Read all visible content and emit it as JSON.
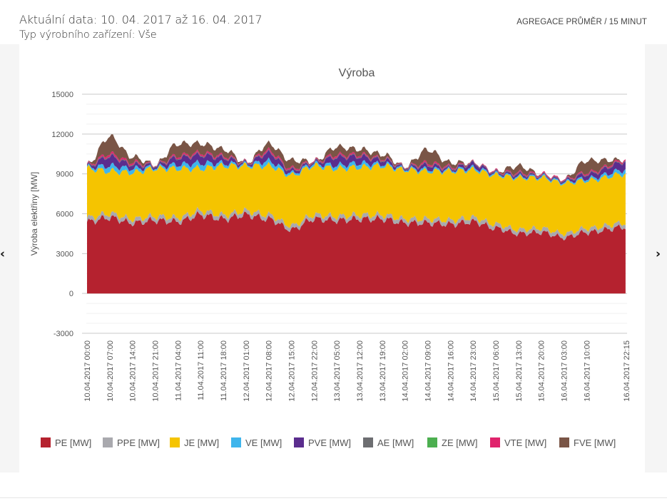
{
  "header": {
    "date_range": "Aktuální data: 10. 04. 2017 až 16. 04. 2017",
    "device_type": "Typ výrobního zařízení: Vše",
    "aggregation": "AGREGACE PRŮMĚR / 15 MINUT"
  },
  "navigation": {
    "prev_icon": "chevron-left-icon",
    "next_icon": "chevron-right-icon",
    "prev_glyph": "‹",
    "next_glyph": "›"
  },
  "chart_data": {
    "type": "area",
    "stacked": true,
    "title": "Výroba",
    "ylabel": "Výroba elektřiny [MW]",
    "xlabel": "",
    "ylim": [
      -3000,
      15000
    ],
    "yticks": [
      15000,
      12000,
      9000,
      6000,
      3000,
      0,
      -3000
    ],
    "grid": true,
    "legend_position": "bottom",
    "x": [
      "10.04.2017 00:00",
      "10.04.2017 07:00",
      "10.04.2017 14:00",
      "10.04.2017 21:00",
      "11.04.2017 04:00",
      "11.04.2017 11:00",
      "11.04.2017 18:00",
      "12.04.2017 01:00",
      "12.04.2017 08:00",
      "12.04.2017 15:00",
      "12.04.2017 22:00",
      "13.04.2017 05:00",
      "13.04.2017 12:00",
      "13.04.2017 19:00",
      "14.04.2017 02:00",
      "14.04.2017 09:00",
      "14.04.2017 16:00",
      "14.04.2017 23:00",
      "15.04.2017 06:00",
      "15.04.2017 13:00",
      "15.04.2017 20:00",
      "16.04.2017 03:00",
      "16.04.2017 10:00",
      "16.04.2017 22:15"
    ],
    "x_hours": [
      0,
      7,
      14,
      21,
      28,
      35,
      42,
      49,
      56,
      63,
      70,
      77,
      84,
      91,
      98,
      105,
      112,
      119,
      126,
      133,
      140,
      147,
      154,
      166.25
    ],
    "series": [
      {
        "name": "PE [MW]",
        "color": "#b5222f",
        "values": [
          5400,
          5700,
          5300,
          5500,
          5400,
          5900,
          5600,
          5900,
          5600,
          4800,
          5600,
          5500,
          5600,
          5600,
          5300,
          5300,
          5200,
          5400,
          4900,
          4500,
          4600,
          4200,
          4600,
          5000
        ]
      },
      {
        "name": "PPE [MW]",
        "color": "#a9a9ae",
        "values": [
          300,
          300,
          300,
          300,
          300,
          300,
          300,
          300,
          300,
          300,
          300,
          300,
          300,
          300,
          300,
          300,
          300,
          300,
          300,
          300,
          300,
          300,
          300,
          300
        ]
      },
      {
        "name": "JE [MW]",
        "color": "#f5c400",
        "values": [
          3700,
          3200,
          3500,
          3600,
          3700,
          3200,
          3700,
          3400,
          3700,
          3800,
          3700,
          3600,
          3600,
          3700,
          3700,
          3600,
          3700,
          3600,
          3700,
          3900,
          3800,
          3800,
          3600,
          3700
        ]
      },
      {
        "name": "VE [MW]",
        "color": "#3fb5ec",
        "values": [
          100,
          400,
          300,
          100,
          300,
          400,
          200,
          100,
          350,
          150,
          150,
          250,
          300,
          150,
          100,
          150,
          100,
          150,
          100,
          100,
          100,
          100,
          150,
          300
        ]
      },
      {
        "name": "PVE [MW]",
        "color": "#5b2d8e",
        "values": [
          80,
          700,
          300,
          120,
          500,
          600,
          400,
          80,
          600,
          200,
          100,
          600,
          500,
          300,
          80,
          300,
          100,
          300,
          80,
          150,
          60,
          100,
          300,
          600
        ]
      },
      {
        "name": "AE [MW]",
        "color": "#6d6e71",
        "values": [
          60,
          60,
          60,
          60,
          60,
          60,
          60,
          60,
          60,
          60,
          60,
          60,
          60,
          60,
          60,
          60,
          60,
          60,
          60,
          60,
          60,
          60,
          60,
          60
        ]
      },
      {
        "name": "ZE [MW]",
        "color": "#4caf50",
        "values": [
          0,
          0,
          0,
          0,
          0,
          0,
          0,
          0,
          0,
          0,
          0,
          0,
          0,
          0,
          0,
          0,
          0,
          0,
          0,
          0,
          0,
          0,
          0,
          0
        ]
      },
      {
        "name": "VTE [MW]",
        "color": "#e0236c",
        "values": [
          60,
          150,
          120,
          40,
          110,
          120,
          100,
          40,
          140,
          100,
          60,
          120,
          100,
          70,
          40,
          120,
          80,
          40,
          60,
          80,
          80,
          60,
          90,
          100
        ]
      },
      {
        "name": "FVE [MW]",
        "color": "#7a5546",
        "values": [
          0,
          1300,
          400,
          0,
          900,
          700,
          500,
          0,
          500,
          600,
          0,
          600,
          400,
          300,
          0,
          1000,
          300,
          0,
          0,
          500,
          0,
          0,
          900,
          0
        ]
      }
    ]
  }
}
